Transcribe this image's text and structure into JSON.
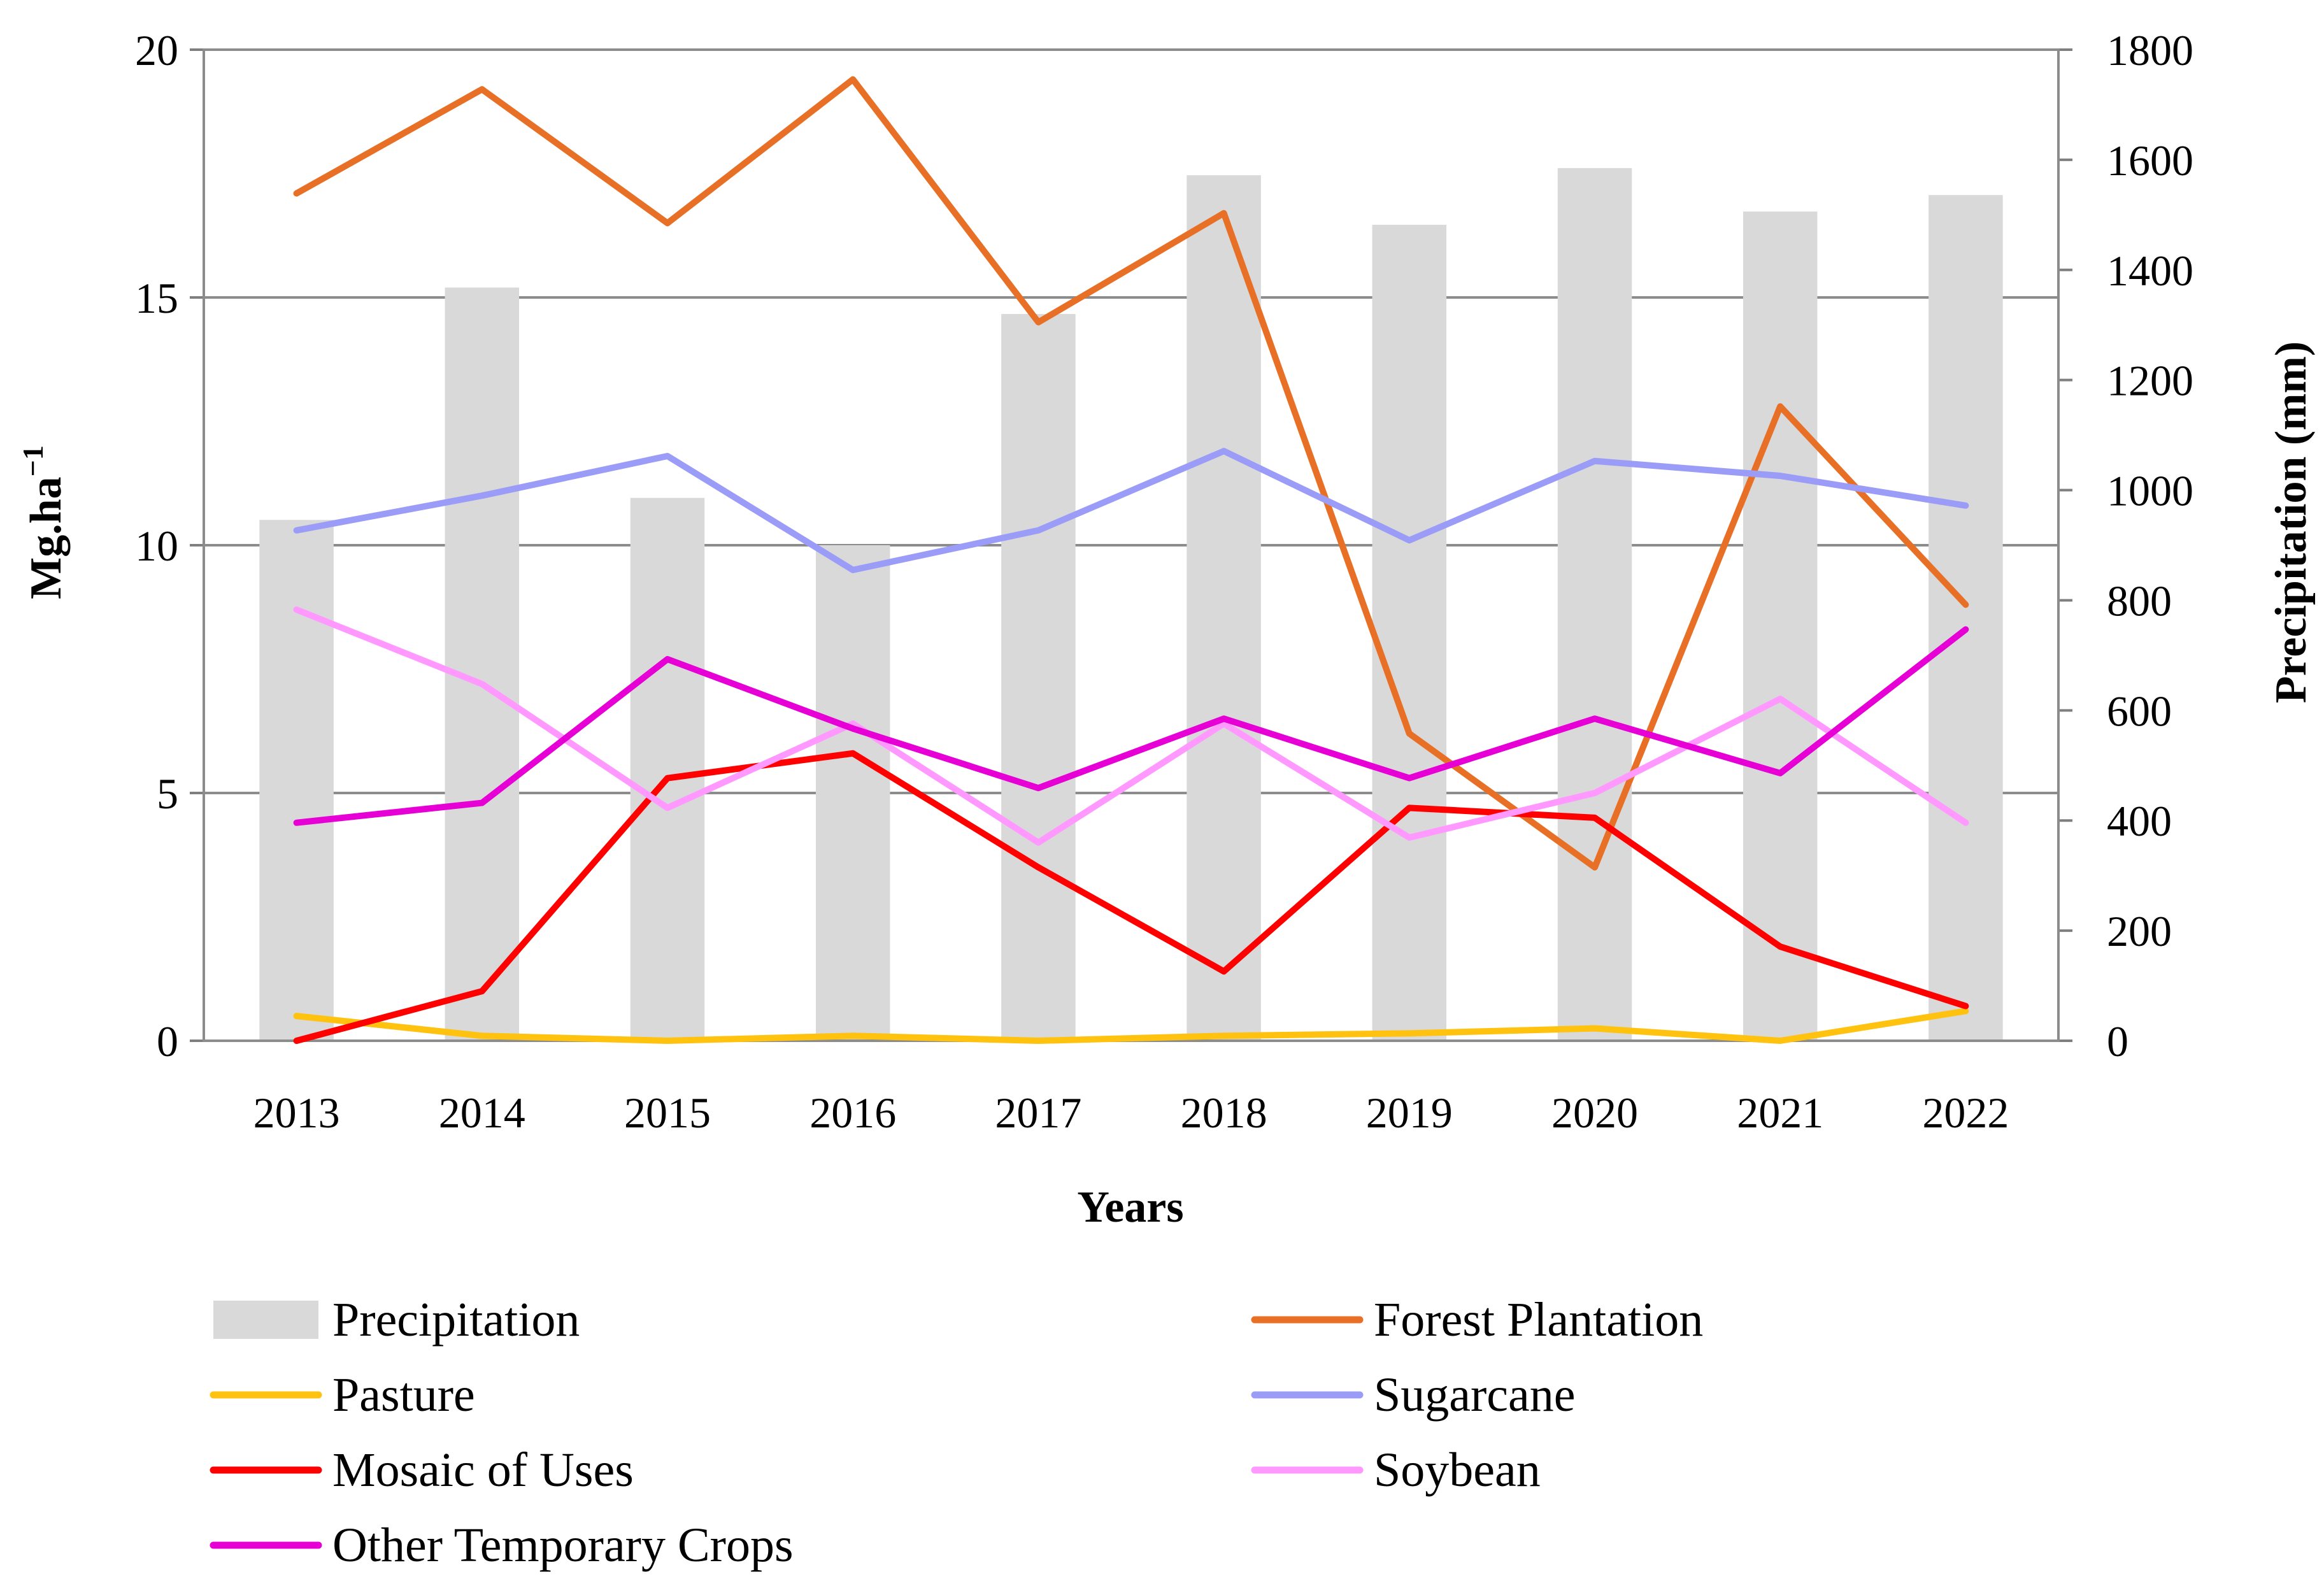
{
  "chart_data": {
    "type": "bar+line",
    "title": "",
    "xlabel": "Years",
    "ylabel": "Mg.ha",
    "ylabel_superscript": "−1",
    "y2label": "Precipitation (mm)",
    "ylim": [
      0,
      20
    ],
    "y2lim": [
      0,
      1800
    ],
    "yticks": [
      "0",
      "5",
      "10",
      "15",
      "20"
    ],
    "y2ticks": [
      "0",
      "200",
      "400",
      "600",
      "800",
      "1000",
      "1200",
      "1400",
      "1600",
      "1800"
    ],
    "grid": true,
    "legend_position": "bottom",
    "categories": [
      "2013",
      "2014",
      "2015",
      "2016",
      "2017",
      "2018",
      "2019",
      "2020",
      "2021",
      "2022"
    ],
    "bars": {
      "name": "Precipitation",
      "axis": "right",
      "color": "#d9d9d9",
      "values": [
        946,
        1368,
        986,
        900,
        1320,
        1572,
        1482,
        1585,
        1506,
        1536
      ]
    },
    "series": [
      {
        "name": "Forest Plantation",
        "color": "#e87026",
        "values": [
          17.1,
          19.2,
          16.5,
          19.4,
          14.5,
          16.7,
          6.2,
          3.5,
          12.8,
          8.8
        ]
      },
      {
        "name": "Pasture",
        "color": "#ffc20e",
        "values": [
          0.5,
          0.1,
          0.0,
          0.1,
          0.0,
          0.1,
          0.15,
          0.25,
          0.0,
          0.6
        ]
      },
      {
        "name": "Sugarcane",
        "color": "#9b9cf7",
        "values": [
          10.3,
          11.0,
          11.8,
          9.5,
          10.3,
          11.9,
          10.1,
          11.7,
          11.4,
          10.8
        ]
      },
      {
        "name": "Mosaic of Uses",
        "color": "#ff0000",
        "values": [
          0.0,
          1.0,
          5.3,
          5.8,
          3.5,
          1.4,
          4.7,
          4.5,
          1.9,
          0.7
        ]
      },
      {
        "name": "Soybean",
        "color": "#ff99ff",
        "values": [
          8.7,
          7.2,
          4.7,
          6.4,
          4.0,
          6.4,
          4.1,
          5.0,
          6.9,
          4.4
        ]
      },
      {
        "name": "Other Temporary Crops",
        "color": "#e600d6",
        "values": [
          4.4,
          4.8,
          7.7,
          6.3,
          5.1,
          6.5,
          5.3,
          6.5,
          5.4,
          8.3
        ]
      }
    ],
    "legend": [
      "Precipitation",
      "Forest Plantation",
      "Pasture",
      "Sugarcane",
      "Mosaic of Uses",
      "Soybean",
      "Other Temporary Crops"
    ]
  }
}
